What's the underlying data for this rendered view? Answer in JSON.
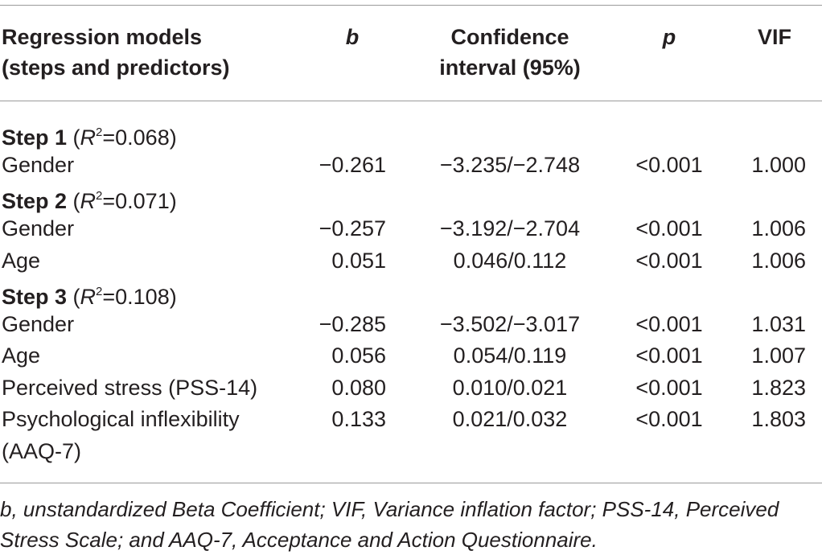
{
  "headers": {
    "model_line1": "Regression models",
    "model_line2": "(steps and predictors)",
    "b": "b",
    "ci_line1": "Confidence",
    "ci_line2": "interval (95%)",
    "p": "p",
    "vif": "VIF"
  },
  "steps": [
    {
      "label": "Step 1",
      "r_letter": "R",
      "r_sup": "2",
      "r_value": "=0.068"
    },
    {
      "label": "Step 2",
      "r_letter": "R",
      "r_sup": "2",
      "r_value": "=0.071"
    },
    {
      "label": "Step 3",
      "r_letter": "R",
      "r_sup": "2",
      "r_value": "=0.108"
    }
  ],
  "rows": [
    {
      "predictor": "Gender",
      "b": "−0.261",
      "ci": "−3.235/−2.748",
      "p": "<0.001",
      "vif": "1.000"
    },
    {
      "predictor": "Gender",
      "b": "−0.257",
      "ci": "−3.192/−2.704",
      "p": "<0.001",
      "vif": "1.006"
    },
    {
      "predictor": "Age",
      "b": "0.051",
      "ci": "0.046/0.112",
      "p": "<0.001",
      "vif": "1.006"
    },
    {
      "predictor": "Gender",
      "b": "−0.285",
      "ci": "−3.502/−3.017",
      "p": "<0.001",
      "vif": "1.031"
    },
    {
      "predictor": "Age",
      "b": "0.056",
      "ci": "0.054/0.119",
      "p": "<0.001",
      "vif": "1.007"
    },
    {
      "predictor": "Perceived stress (PSS-14)",
      "b": "0.080",
      "ci": "0.010/0.021",
      "p": "<0.001",
      "vif": "1.823"
    },
    {
      "predictor_line1": "Psychological inflexibility",
      "predictor_line2": "(AAQ-7)",
      "b": "0.133",
      "ci": "0.021/0.032",
      "p": "<0.001",
      "vif": "1.803"
    }
  ],
  "footnote": "b, unstandardized Beta Coefficient; VIF, Variance inflation factor; PSS-14, Perceived Stress Scale; and AAQ-7, Acceptance and Action Questionnaire."
}
